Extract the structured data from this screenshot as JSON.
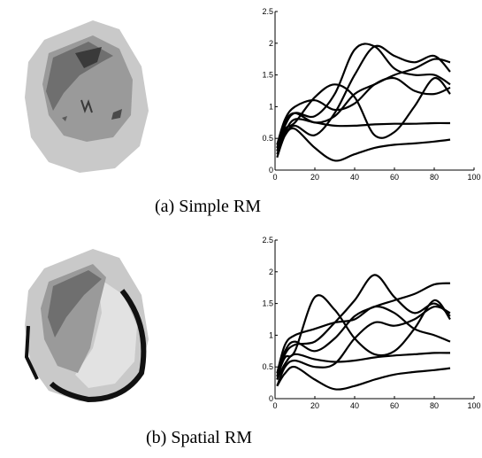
{
  "figure": {
    "panels": [
      {
        "caption": "(a) Simple RM",
        "segmentation": {
          "colors": {
            "background_light": "#c9c9c9",
            "mid": "#9a9a9a",
            "dark": "#6f6f6f",
            "darkest": "#3a3a3a"
          }
        },
        "chart_data": {
          "type": "line",
          "xlim": [
            0,
            100
          ],
          "ylim": [
            0,
            2.5
          ],
          "xticks": [
            "0",
            "20",
            "40",
            "60",
            "80",
            "100"
          ],
          "yticks": [
            "0",
            "0.5",
            "1",
            "1.5",
            "2",
            "2.5"
          ],
          "series": [
            {
              "x": [
                1,
                5,
                10,
                20,
                30,
                40,
                50,
                60,
                70,
                80,
                88
              ],
              "values": [
                0.25,
                0.55,
                0.65,
                0.35,
                0.15,
                0.25,
                0.35,
                0.4,
                0.42,
                0.45,
                0.48
              ]
            },
            {
              "x": [
                1,
                5,
                10,
                20,
                30,
                40,
                50,
                60,
                70,
                80,
                88
              ],
              "values": [
                0.3,
                0.6,
                0.8,
                0.75,
                0.7,
                0.7,
                0.72,
                0.73,
                0.73,
                0.74,
                0.74
              ]
            },
            {
              "x": [
                1,
                5,
                10,
                20,
                30,
                40,
                50,
                60,
                70,
                80,
                88
              ],
              "values": [
                0.35,
                0.75,
                0.9,
                0.75,
                0.85,
                1.2,
                1.35,
                1.5,
                1.6,
                1.75,
                1.7
              ]
            },
            {
              "x": [
                1,
                5,
                10,
                20,
                30,
                40,
                50,
                60,
                70,
                80,
                88
              ],
              "values": [
                0.4,
                0.8,
                1.0,
                1.1,
                0.95,
                1.05,
                1.35,
                1.45,
                1.25,
                1.2,
                1.3
              ]
            },
            {
              "x": [
                1,
                5,
                10,
                20,
                30,
                40,
                50,
                60,
                70,
                80,
                88
              ],
              "values": [
                0.3,
                0.7,
                0.9,
                0.85,
                1.2,
                1.9,
                1.95,
                1.6,
                1.5,
                1.5,
                1.35
              ]
            },
            {
              "x": [
                1,
                5,
                10,
                20,
                30,
                40,
                50,
                60,
                70,
                80,
                88
              ],
              "values": [
                0.35,
                0.65,
                0.75,
                1.15,
                1.35,
                1.15,
                0.55,
                0.6,
                1.0,
                1.45,
                1.2
              ]
            },
            {
              "x": [
                1,
                5,
                10,
                20,
                30,
                40,
                50,
                60,
                70,
                80,
                88
              ],
              "values": [
                0.2,
                0.55,
                0.7,
                0.55,
                0.9,
                1.5,
                1.95,
                1.8,
                1.7,
                1.8,
                1.55
              ]
            }
          ]
        }
      },
      {
        "caption": "(b) Spatial RM",
        "segmentation": {
          "colors": {
            "background_light": "#c9c9c9",
            "mid": "#9a9a9a",
            "dark": "#6f6f6f",
            "rim": "#111111"
          }
        },
        "chart_data": {
          "type": "line",
          "xlim": [
            0,
            100
          ],
          "ylim": [
            0,
            2.5
          ],
          "xticks": [
            "0",
            "20",
            "40",
            "60",
            "80",
            "100"
          ],
          "yticks": [
            "0",
            "0.5",
            "1",
            "1.5",
            "2",
            "2.5"
          ],
          "series": [
            {
              "x": [
                1,
                5,
                10,
                20,
                30,
                40,
                50,
                60,
                70,
                80,
                88
              ],
              "values": [
                0.2,
                0.4,
                0.5,
                0.3,
                0.15,
                0.2,
                0.3,
                0.38,
                0.42,
                0.45,
                0.48
              ]
            },
            {
              "x": [
                1,
                5,
                10,
                20,
                30,
                40,
                50,
                60,
                70,
                80,
                88
              ],
              "values": [
                0.3,
                0.55,
                0.7,
                0.62,
                0.58,
                0.6,
                0.65,
                0.68,
                0.7,
                0.72,
                0.72
              ]
            },
            {
              "x": [
                1,
                5,
                10,
                20,
                30,
                40,
                50,
                60,
                70,
                80,
                88
              ],
              "values": [
                0.35,
                0.75,
                0.9,
                0.75,
                0.95,
                1.3,
                1.45,
                1.55,
                1.65,
                1.8,
                1.82
              ]
            },
            {
              "x": [
                1,
                5,
                10,
                20,
                30,
                40,
                50,
                60,
                70,
                80,
                88
              ],
              "values": [
                0.4,
                0.85,
                1.0,
                1.1,
                1.2,
                1.25,
                1.45,
                1.35,
                1.1,
                1.0,
                0.9
              ]
            },
            {
              "x": [
                1,
                5,
                10,
                20,
                30,
                40,
                50,
                60,
                70,
                80,
                88
              ],
              "values": [
                0.3,
                0.7,
                0.85,
                0.9,
                1.2,
                1.55,
                1.95,
                1.6,
                1.35,
                1.5,
                1.3
              ]
            },
            {
              "x": [
                1,
                5,
                10,
                20,
                30,
                40,
                50,
                60,
                70,
                80,
                88
              ],
              "values": [
                0.35,
                0.65,
                0.75,
                1.6,
                1.4,
                0.95,
                0.7,
                0.75,
                1.1,
                1.55,
                1.25
              ]
            },
            {
              "x": [
                1,
                5,
                10,
                20,
                30,
                40,
                50,
                60,
                70,
                80,
                88
              ],
              "values": [
                0.2,
                0.5,
                0.6,
                0.5,
                0.55,
                0.95,
                1.2,
                1.15,
                1.25,
                1.45,
                1.35
              ]
            }
          ]
        }
      }
    ]
  }
}
